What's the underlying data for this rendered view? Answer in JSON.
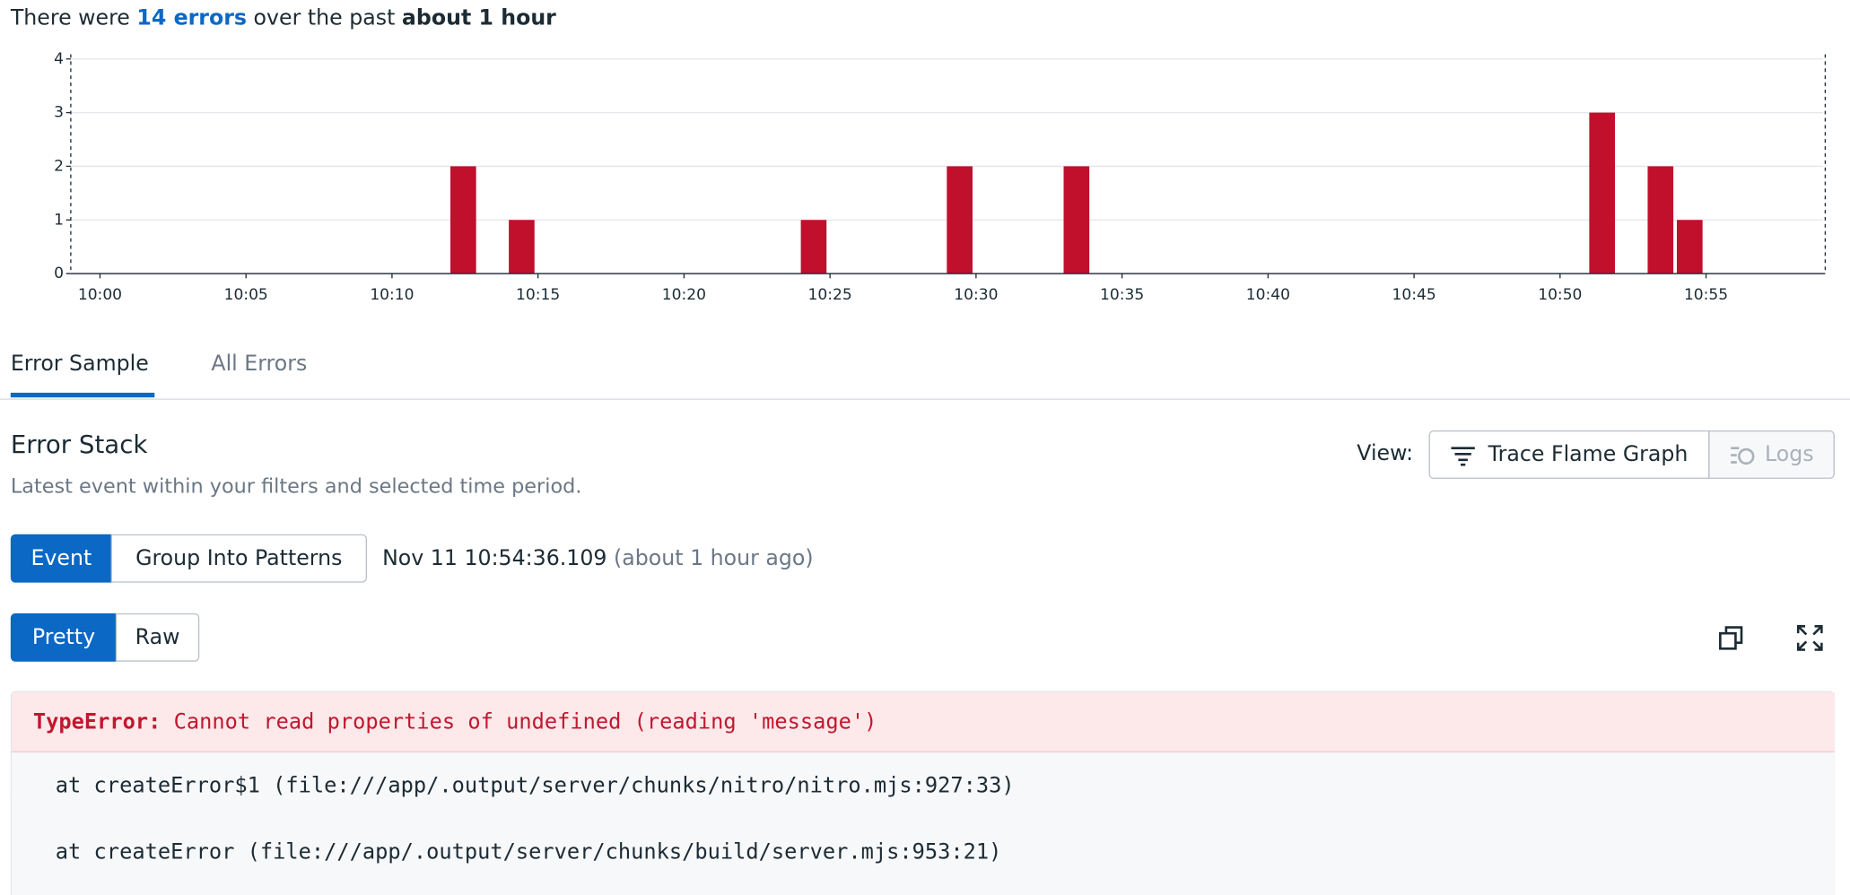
{
  "summary": {
    "prefix": "There were",
    "count": "14 errors",
    "middle": "over the past",
    "period": "about 1 hour"
  },
  "chart_data": {
    "type": "bar",
    "color": "#c0102c",
    "x": [
      "10:12",
      "10:14",
      "10:24",
      "10:29",
      "10:33",
      "10:51",
      "10:53",
      "10:54"
    ],
    "values": [
      2,
      1,
      1,
      2,
      2,
      3,
      2,
      1
    ],
    "xlim": [
      "09:59",
      "10:59"
    ],
    "xticks": [
      "10:00",
      "10:05",
      "10:10",
      "10:15",
      "10:20",
      "10:25",
      "10:30",
      "10:35",
      "10:40",
      "10:45",
      "10:50",
      "10:55"
    ],
    "ylim": [
      0,
      4
    ],
    "yticks": [
      0,
      1,
      2,
      3,
      4
    ],
    "grid": true
  },
  "tabs": [
    "Error Sample",
    "All Errors"
  ],
  "section": {
    "title": "Error Stack",
    "subtitle": "Latest event within your filters and selected time period."
  },
  "view": {
    "label": "View:",
    "options": [
      "Trace Flame Graph",
      "Logs"
    ]
  },
  "mode_toggle": [
    "Event",
    "Group Into Patterns"
  ],
  "timestamp": {
    "time": "Nov 11 10:54:36.109",
    "relative": "(about 1 hour ago)"
  },
  "format_toggle": [
    "Pretty",
    "Raw"
  ],
  "error": {
    "type": "TypeError:",
    "message": "Cannot read properties of undefined (reading 'message')",
    "stack": [
      "at createError$1 (file:///app/.output/server/chunks/nitro/nitro.mjs:927:33)",
      "at createError (file:///app/.output/server/chunks/build/server.mjs:953:21)"
    ]
  }
}
